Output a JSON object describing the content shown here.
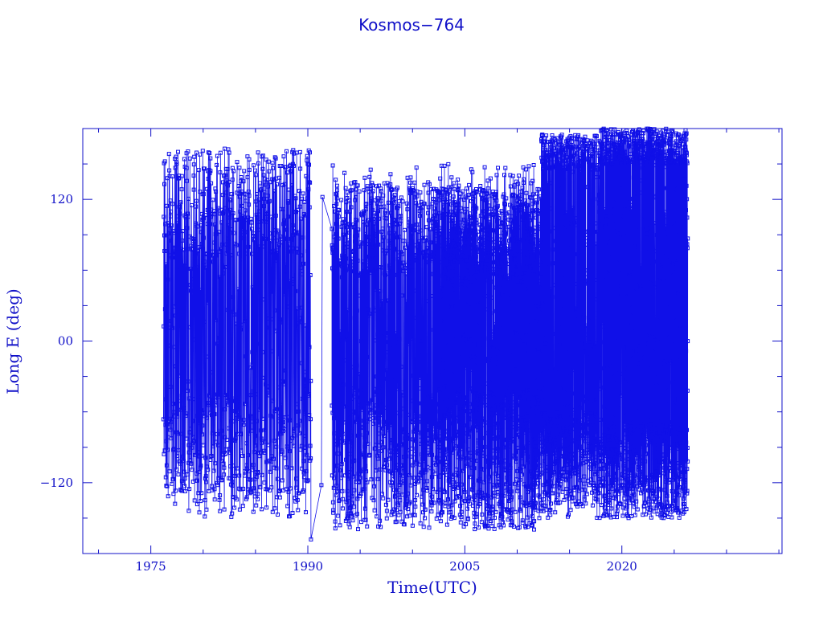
{
  "chart_data": {
    "type": "line",
    "title": "Kosmos−764",
    "xlabel": "Time(UTC)",
    "ylabel": "Long E (deg)",
    "xlim": [
      1968.5,
      2035.3
    ],
    "ylim": [
      -180,
      180
    ],
    "x_ticks": [
      {
        "value": 1975,
        "label": "1975"
      },
      {
        "value": 1990,
        "label": "1990"
      },
      {
        "value": 2005,
        "label": "2005"
      },
      {
        "value": 2020,
        "label": "2020"
      }
    ],
    "y_ticks": [
      {
        "value": 120,
        "label": "120"
      },
      {
        "value": 0,
        "label": "00"
      },
      {
        "value": -120,
        "label": "−120"
      }
    ],
    "color": "#1010e8",
    "marker": "square",
    "grid": false,
    "series": [
      {
        "segments": [
          {
            "t0": 1976.2,
            "t1": 1990.3,
            "n": 900,
            "lanes": [
              {
                "c": 118,
                "s": 45
              },
              {
                "c": -90,
                "s": 45
              },
              {
                "c": 0,
                "s": 150
              }
            ]
          },
          {
            "t0": 1992.3,
            "t1": 2002.5,
            "n": 900,
            "lanes": [
              {
                "c": 95,
                "s": 40
              },
              {
                "c": -100,
                "s": 60
              },
              {
                "c": 0,
                "s": 150
              }
            ]
          },
          {
            "t0": 2002.5,
            "t1": 2012.3,
            "n": 1400,
            "lanes": [
              {
                "c": 90,
                "s": 40
              },
              {
                "c": -100,
                "s": 60
              },
              {
                "c": 0,
                "s": 150
              }
            ]
          },
          {
            "t0": 2012.3,
            "t1": 2018.0,
            "n": 700,
            "lanes": [
              {
                "c": -100,
                "s": 40
              },
              {
                "c": 0,
                "s": 150
              },
              {
                "c": 160,
                "s": 15
              }
            ]
          },
          {
            "t0": 2018.0,
            "t1": 2026.3,
            "n": 1200,
            "lanes": [
              {
                "c": -110,
                "s": 40
              },
              {
                "c": 165,
                "s": 15
              },
              {
                "c": 0,
                "s": 150
              }
            ]
          }
        ],
        "points": [
          {
            "x": 1990.3,
            "y": -168
          },
          {
            "x": 1991.3,
            "y": -122
          },
          {
            "x": 1991.4,
            "y": 122
          },
          {
            "x": 1992.3,
            "y": 95
          }
        ]
      }
    ]
  }
}
